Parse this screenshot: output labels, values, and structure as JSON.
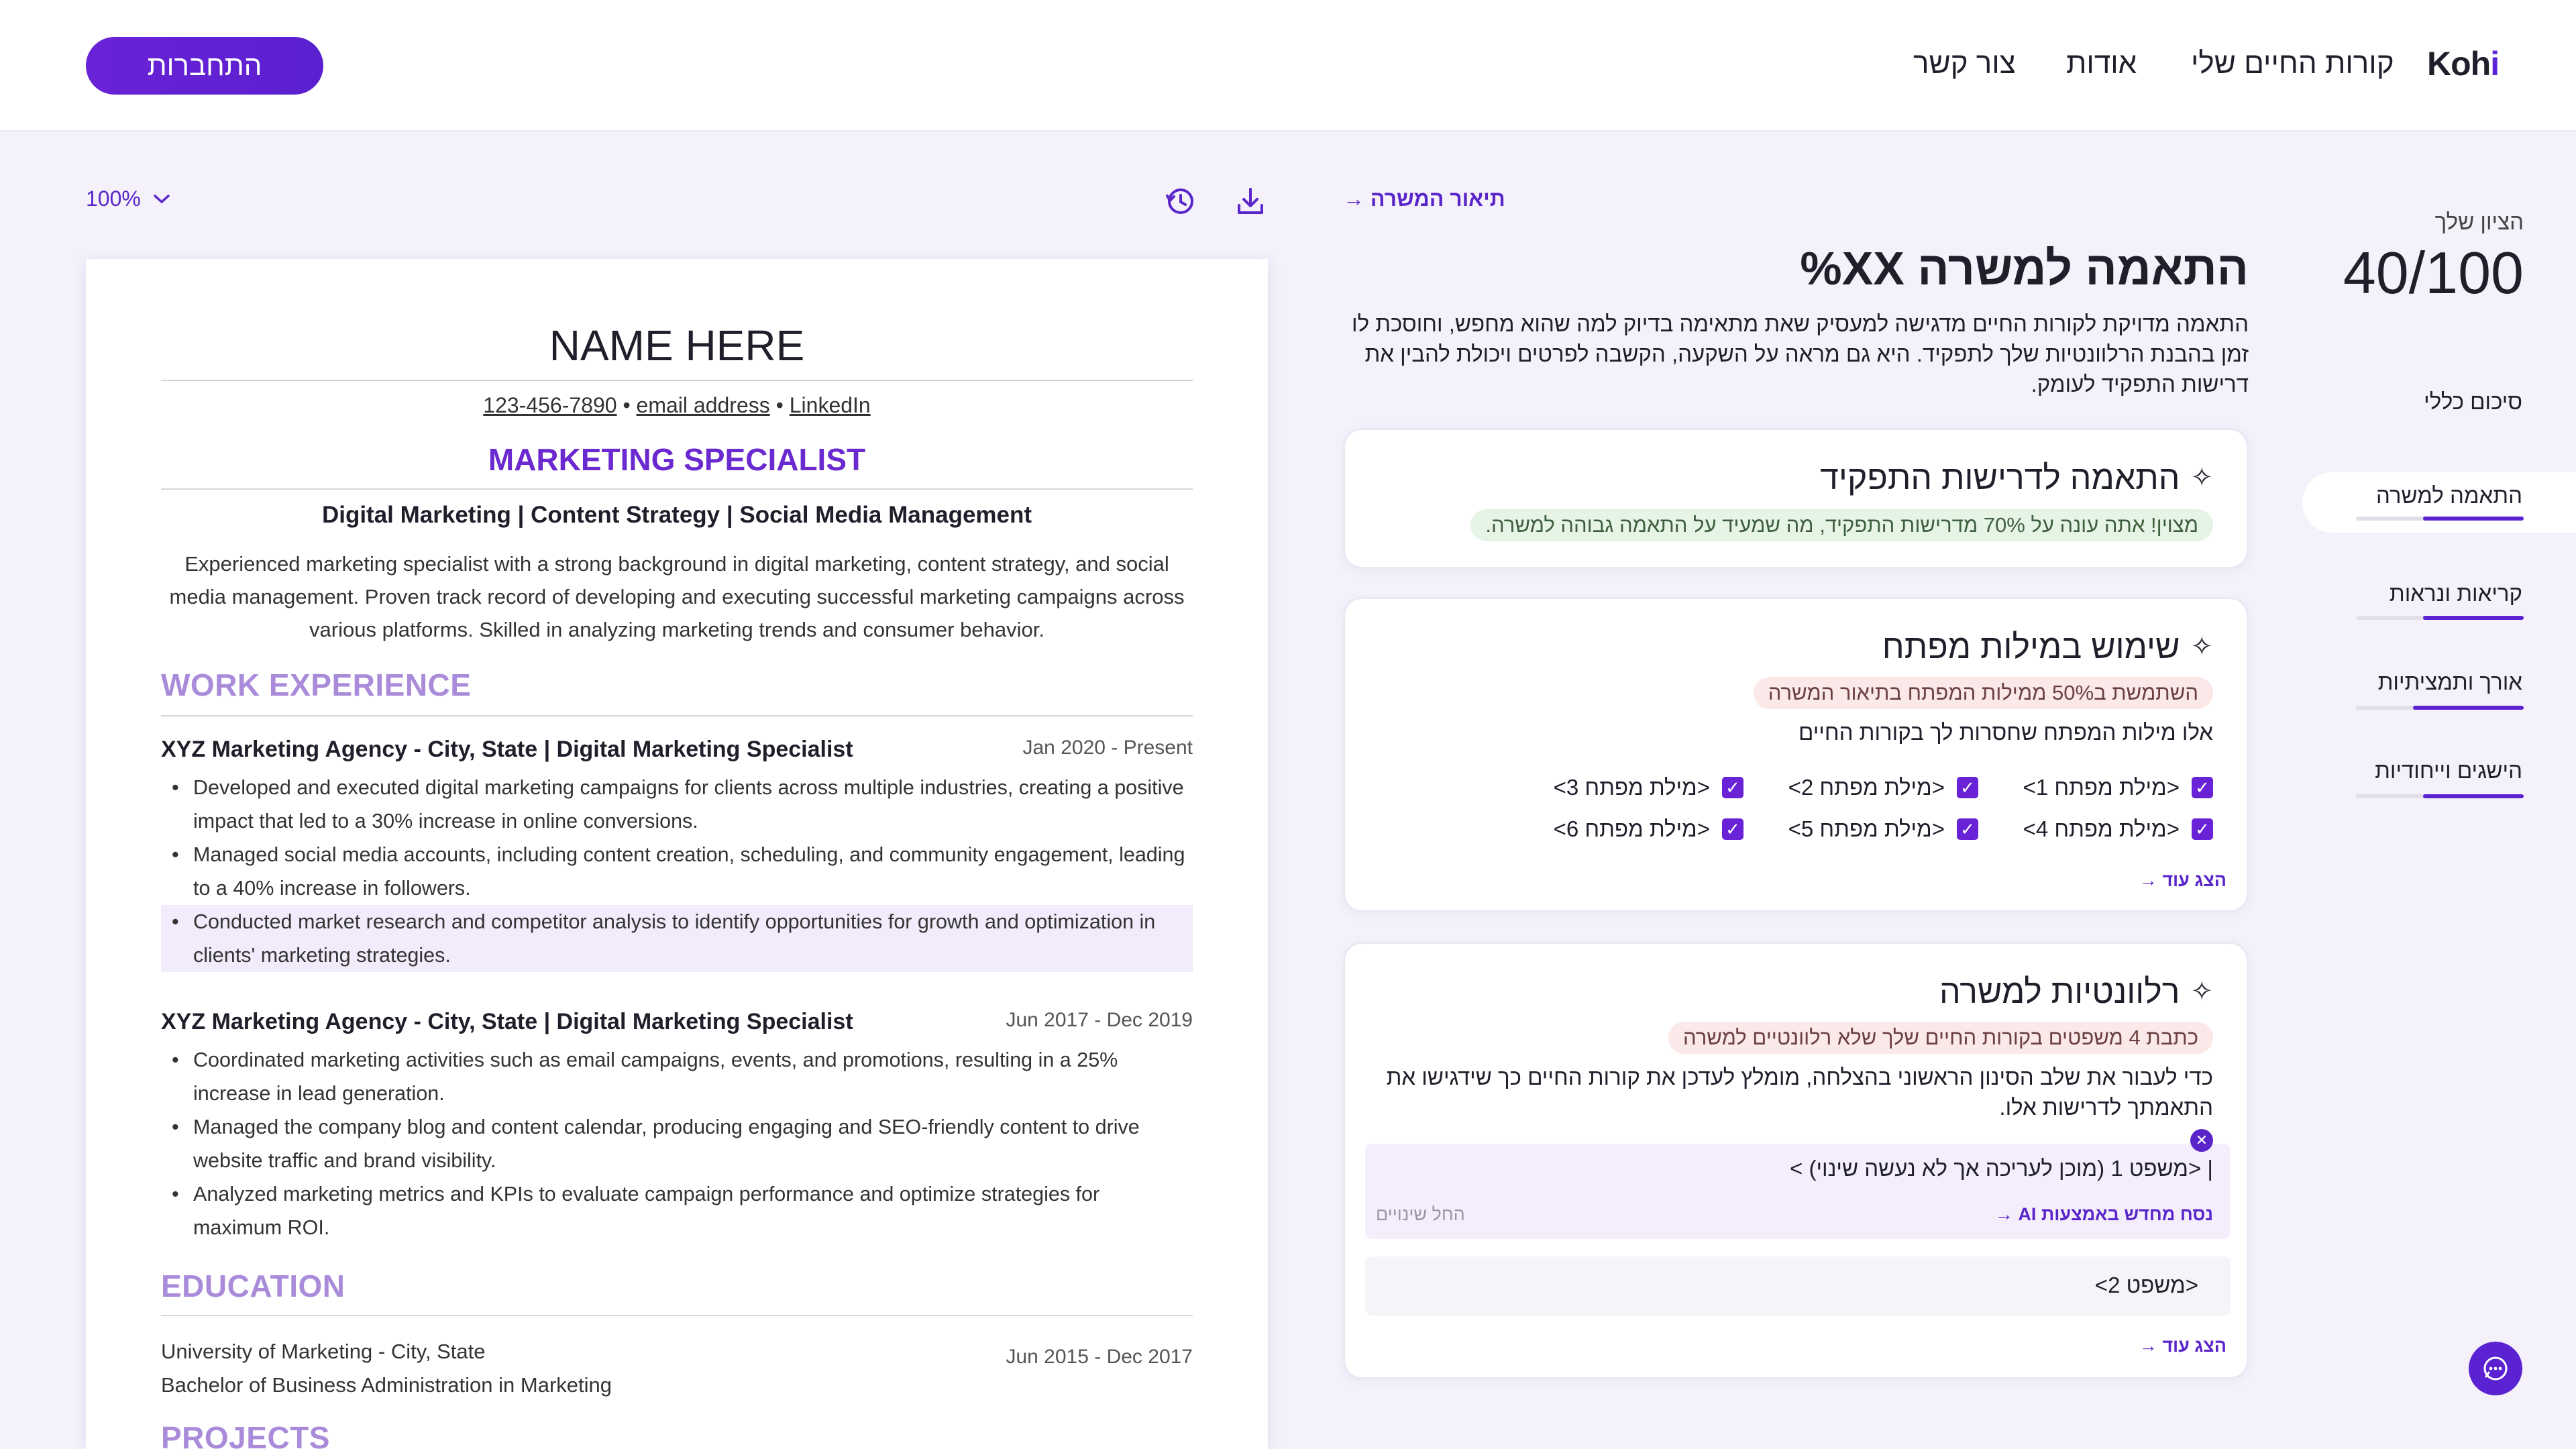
{
  "header": {
    "logo": "Koh",
    "logo_slash": "i",
    "nav": [
      "קורות החיים שלי",
      "אודות",
      "צור קשר"
    ],
    "login_label": "התחברות"
  },
  "toolbar": {
    "zoom": "100%",
    "history_icon": "history-icon",
    "download_icon": "download-icon"
  },
  "resume": {
    "name": "NAME HERE",
    "phone": "123-456-7890",
    "email": "email address",
    "linkedin": "LinkedIn",
    "title": "MARKETING SPECIALIST",
    "skills": "Digital Marketing | Content Strategy | Social Media Management",
    "summary": "Experienced marketing specialist with a strong background in digital marketing, content strategy, and social media management. Proven track record of developing and executing successful marketing campaigns across various platforms. Skilled in analyzing marketing trends and consumer behavior.",
    "work_heading": "WORK EXPERIENCE",
    "jobs": [
      {
        "head": "XYZ Marketing Agency - City, State  |  Digital Marketing Specialist",
        "date": "Jan 2020 - Present",
        "bullets": [
          "Developed and executed digital marketing campaigns for clients across multiple industries, creating a positive impact that led to a 30% increase in online conversions.",
          "Managed social media accounts, including content creation, scheduling, and community engagement, leading to a 40% increase in followers.",
          "Conducted market research and competitor analysis to identify opportunities for growth and optimization in clients' marketing strategies."
        ]
      },
      {
        "head": "XYZ Marketing Agency - City, State  |  Digital Marketing Specialist",
        "date": "Jun 2017 - Dec 2019",
        "bullets": [
          "Coordinated marketing activities such as email campaigns, events, and promotions, resulting in a 25% increase in lead generation.",
          "Managed the company blog and content calendar, producing engaging and SEO-friendly content to drive website traffic and brand visibility.",
          "Analyzed marketing metrics and KPIs to evaluate campaign performance and optimize strategies for maximum ROI."
        ]
      }
    ],
    "education_heading": "EDUCATION",
    "education": {
      "school": "University of Marketing - City, State",
      "degree": "Bachelor of Business Administration in Marketing",
      "date": "Jun 2015 - Dec 2017"
    },
    "projects_heading": "PROJECTS"
  },
  "analysis": {
    "back_link": "תיאור המשרה →",
    "title": "התאמה למשרה  XX%",
    "description": "התאמה מדויקת לקורות החיים מדגישה למעסיק שאת מתאימה בדיוק למה שהוא מחפש, וחוסכת לו זמן בהבנת הרלוונטיות שלך לתפקיד. היא גם מראה על השקעה, הקשבה לפרטים ויכולת להבין את דרישות התפקיד לעומק.",
    "card1": {
      "title": "התאמה לדרישות התפקיד",
      "pill": "מצוין! אתה עונה על 70% מדרישות התפקיד, מה שמעיד על התאמה גבוהה למשרה."
    },
    "card2": {
      "title": "שימוש במילות מפתח",
      "pill": "השתמשת ב50% ממילות המפתח בתיאור המשרה",
      "text": "אלו מילות המפתח שחסרות לך בקורות החיים",
      "keywords": [
        "<מילת מפתח 1>",
        "<מילת מפתח 2>",
        "<מילת מפתח 3>",
        "<מילת מפתח 4>",
        "<מילת מפתח 5>",
        "<מילת מפתח 6>"
      ],
      "show_more": "הצג עוד →"
    },
    "card3": {
      "title": "רלוונטיות למשרה",
      "pill": "כתבת 4 משפטים בקורות החיים שלך שלא רלוונטיים למשרה",
      "text": "כדי לעבור את שלב הסינון הראשוני בהצלחה, מומלץ לעדכן את קורות החיים כך שידגישו את התאמתך לדרישות אלו.",
      "sentence1": "<משפט 1 (מוכן לעריכה אך לא נעשה שינוי) >",
      "ai_rewrite": "נסח מחדש באמצעות AI →",
      "apply_changes": "החל שינויים",
      "sentence2": "<משפט 2>",
      "show_more": "הצג עוד →"
    }
  },
  "score": {
    "label": "הציון שלך",
    "value": "40/100",
    "sections": [
      {
        "label": "סיכום כללי",
        "progress": null
      },
      {
        "label": "התאמה למשרה",
        "progress": 0.6
      },
      {
        "label": "קריאות ונראות",
        "progress": 0.6
      },
      {
        "label": "אורך ותמציתיות",
        "progress": 0.66
      },
      {
        "label": "הישגים וייחודיות",
        "progress": 0.6
      }
    ]
  },
  "colors": {
    "accent": "#5a22d0",
    "section_heading": "#a98bd9",
    "pill_green": "#e6f4e6",
    "pill_red": "#fbe8e8"
  }
}
